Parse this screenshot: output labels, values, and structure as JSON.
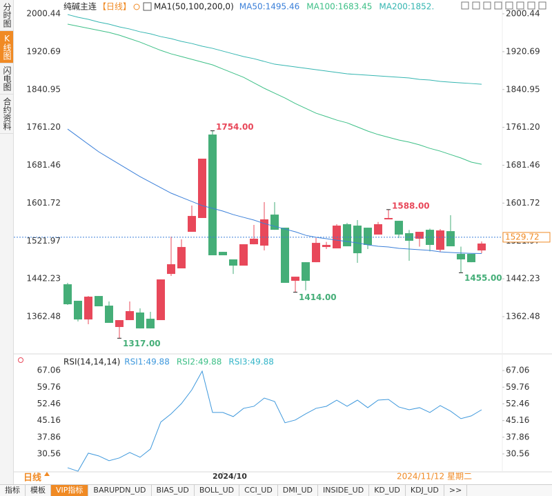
{
  "ui": {
    "side_tabs": [
      "分时图",
      "K线图",
      "闪电图",
      "合约资料"
    ],
    "period": "日线",
    "cursor_date": "2024/11/12 星期二",
    "bottom_tabs": [
      "指标",
      "模板",
      "VIP指标",
      "BARUPDN_UD",
      "BIAS_UD",
      "BOLL_UD",
      "CCI_UD",
      "DMI_UD",
      "INSIDE_UD",
      "KD_UD",
      "KDJ_UD",
      ">>"
    ]
  },
  "chart_data": [
    {
      "type": "candlestick",
      "title": "纯碱主连",
      "subtitle": "【日线】",
      "indicator": "MA1(50,100,200,0)",
      "categories": [
        null,
        null,
        null,
        null,
        null,
        null,
        null,
        null,
        null,
        null,
        null,
        null,
        null,
        null,
        null,
        "2024/10",
        null,
        null,
        null,
        null,
        null,
        null,
        null,
        null,
        null,
        null,
        null,
        null,
        null,
        null,
        null,
        null,
        null,
        null,
        null,
        null,
        null,
        null,
        null,
        null,
        null
      ],
      "up_color": "#e8485a",
      "down_color": "#45ae78",
      "open": [
        1430.7,
        1395.9,
        1356.6,
        1406.0,
        1385.7,
        1340.7,
        1355.2,
        1371.2,
        1358.1,
        1355.2,
        1452.5,
        1464.2,
        1541.2,
        1570.3,
        1746.1,
        1499.0,
        1483.1,
        1470.0,
        1515.0,
        1512.1,
        1577.5,
        1549.9,
        1438.0,
        1477.2,
        1477.2,
        1509.2,
        1506.3,
        1557.2,
        1554.3,
        1549.9,
        1535.4,
        1567.4,
        1564.4,
        1538.3,
        1526.7,
        1545.5,
        1503.4,
        1542.6,
        1494.7,
        1494.7,
        1502.0
      ],
      "high": [
        1433.7,
        1395.9,
        1406.0,
        1406.0,
        1394.4,
        1355.2,
        1394.4,
        1379.9,
        1372.6,
        1440.9,
        1531.0,
        1525.2,
        1596.4,
        1695.3,
        1754.0,
        1499.0,
        1483.1,
        1515.0,
        1555.7,
        1603.7,
        1603.7,
        1549.9,
        1446.7,
        1477.2,
        1528.1,
        1520.0,
        1557.2,
        1560.0,
        1566.0,
        1550.0,
        1562.0,
        1588.0,
        1564.4,
        1545.0,
        1541.2,
        1548.0,
        1547.0,
        1576.1,
        1510.0,
        1494.7,
        1521.0
      ],
      "low": [
        1387.2,
        1352.3,
        1346.5,
        1384.3,
        1349.4,
        1317.0,
        1355.2,
        1337.7,
        1337.7,
        1355.2,
        1448.2,
        1464.2,
        1541.2,
        1570.3,
        1491.8,
        1491.8,
        1452.5,
        1470.0,
        1515.0,
        1502.0,
        1545.5,
        1433.7,
        1414.0,
        1418.0,
        1477.2,
        1505.0,
        1506.3,
        1510.7,
        1475.8,
        1505.0,
        1535.4,
        1567.4,
        1528.0,
        1480.2,
        1510.0,
        1500.0,
        1499.0,
        1510.7,
        1455.0,
        1477.2,
        1496.0
      ],
      "close": [
        1388.6,
        1356.6,
        1404.6,
        1384.3,
        1349.4,
        1355.2,
        1374.1,
        1337.7,
        1337.7,
        1440.9,
        1472.9,
        1509.2,
        1574.6,
        1695.3,
        1491.8,
        1491.8,
        1470.0,
        1515.0,
        1526.7,
        1567.4,
        1545.5,
        1433.7,
        1446.7,
        1438.0,
        1517.9,
        1513.6,
        1554.3,
        1510.7,
        1496.1,
        1513.6,
        1557.2,
        1570.3,
        1535.4,
        1522.3,
        1541.2,
        1513.6,
        1544.1,
        1510.7,
        1483.1,
        1477.2,
        1516.5
      ],
      "series": [
        {
          "name": "MA50:1495.46",
          "color": "#3a7fd9",
          "values": [
            1757.7,
            1741.7,
            1725.7,
            1709.8,
            1696.7,
            1683.6,
            1670.5,
            1657.4,
            1645.8,
            1634.2,
            1622.6,
            1613.8,
            1605.1,
            1596.4,
            1590.6,
            1584.8,
            1577.5,
            1571.7,
            1565.9,
            1558.6,
            1552.8,
            1547.0,
            1541.2,
            1533.9,
            1529.6,
            1526.7,
            1523.7,
            1520.8,
            1517.9,
            1513.6,
            1510.7,
            1509.2,
            1506.3,
            1504.9,
            1503.4,
            1502.0,
            1499.0,
            1497.6,
            1496.6,
            1495.9,
            1495.46
          ]
        },
        {
          "name": "MA100:1683.45",
          "color": "#3cbf86",
          "values": [
            1978.6,
            1974.3,
            1969.9,
            1965.6,
            1961.2,
            1955.4,
            1948.1,
            1940.8,
            1932.1,
            1923.4,
            1916.1,
            1910.3,
            1904.5,
            1898.7,
            1892.9,
            1884.1,
            1875.4,
            1866.7,
            1855.1,
            1843.5,
            1833.3,
            1823.1,
            1811.5,
            1801.3,
            1791.1,
            1783.9,
            1776.6,
            1770.8,
            1762.1,
            1753.4,
            1746.1,
            1740.3,
            1734.5,
            1730.1,
            1724.3,
            1717.0,
            1711.2,
            1703.9,
            1696.7,
            1688.0,
            1683.45
          ]
        },
        {
          "name": "MA200:1852.",
          "color": "#33b5b0",
          "values": [
            1998.9,
            1993.2,
            1988.8,
            1983.0,
            1978.6,
            1972.8,
            1968.4,
            1962.6,
            1958.3,
            1952.4,
            1948.1,
            1942.3,
            1937.9,
            1932.1,
            1927.7,
            1921.9,
            1916.1,
            1910.3,
            1905.9,
            1900.1,
            1894.3,
            1891.4,
            1888.5,
            1885.6,
            1882.7,
            1879.8,
            1876.9,
            1874.0,
            1872.5,
            1871.1,
            1869.6,
            1868.2,
            1866.7,
            1865.3,
            1862.3,
            1860.9,
            1858.0,
            1856.5,
            1855.0,
            1853.6,
            1852.0
          ]
        }
      ],
      "annotations": [
        {
          "value": 1754,
          "label": "1754.00"
        },
        {
          "value": 1317,
          "label": "1317.00"
        },
        {
          "value": 1414,
          "label": "1414.00"
        },
        {
          "value": 1588,
          "label": "1588.00"
        },
        {
          "value": 1455,
          "label": "1455.00"
        }
      ],
      "last_price": 1529.72,
      "ylim": [
        1288.4,
        2017.9
      ],
      "yticks": [
        2000.44,
        1920.69,
        1840.95,
        {
          "value": 1761.2,
          "label": "1761.20"
        },
        1681.46,
        1601.72,
        1521.97,
        1442.23,
        1362.48
      ]
    },
    {
      "type": "line",
      "title": "RSI(14,14,14)",
      "color": "#3e98dc",
      "legend": [
        {
          "text": "RSI1:49.88",
          "color": "#3e98dc"
        },
        {
          "text": "RSI2:49.88",
          "color": "#3cbf86"
        },
        {
          "text": "RSI3:49.88",
          "color": "#33b5c8"
        }
      ],
      "values": [
        24.5,
        23.0,
        30.9,
        29.7,
        27.6,
        28.8,
        31.2,
        29.1,
        32.7,
        44.5,
        48.1,
        52.6,
        58.6,
        66.8,
        48.7,
        48.7,
        46.9,
        50.5,
        51.4,
        55.0,
        53.5,
        44.2,
        45.4,
        48.1,
        50.5,
        51.4,
        54.1,
        51.4,
        54.1,
        50.8,
        54.1,
        54.4,
        51.1,
        49.9,
        50.8,
        48.7,
        51.7,
        49.3,
        46.0,
        47.2,
        49.88
      ],
      "ylim": [
        20.9,
        69.2
      ],
      "yticks": [
        67.06,
        59.76,
        52.46,
        45.16,
        37.86,
        30.56
      ]
    }
  ]
}
